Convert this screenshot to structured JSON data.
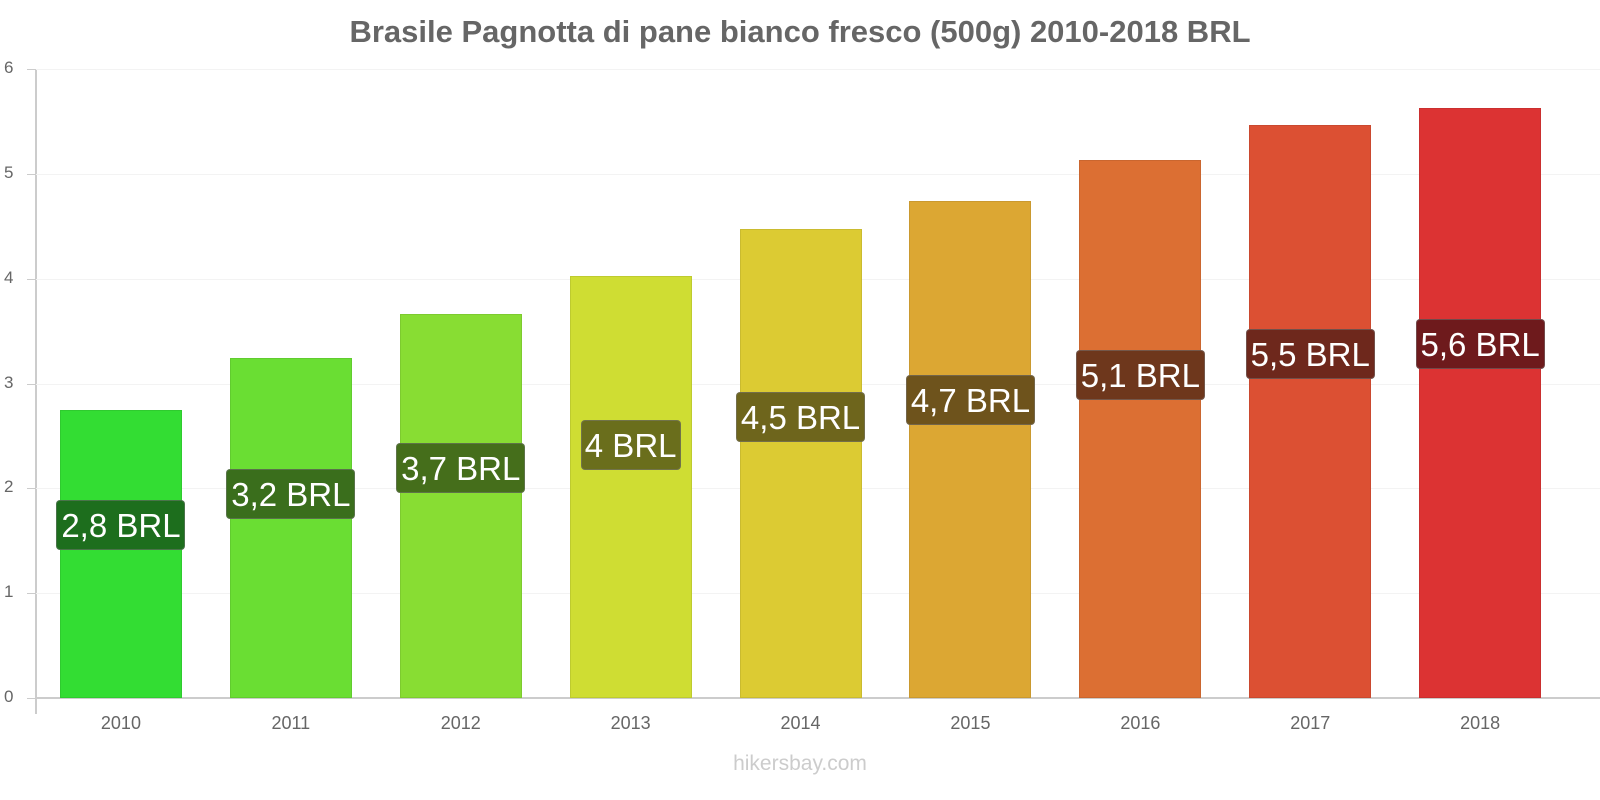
{
  "title": "Brasile Pagnotta di pane bianco fresco (500g) 2010-2018 BRL",
  "watermark": "hikersbay.com",
  "y_ticks": [
    "0",
    "1",
    "2",
    "3",
    "4",
    "5",
    "6"
  ],
  "x_ticks": [
    "2010",
    "2011",
    "2012",
    "2013",
    "2014",
    "2015",
    "2016",
    "2017",
    "2018"
  ],
  "bars": [
    {
      "year": "2010",
      "label": "2,8 BRL",
      "color": "#33dd33",
      "label_bg": "#1d6e1d"
    },
    {
      "year": "2011",
      "label": "3,2 BRL",
      "color": "#6ade33",
      "label_bg": "#3a6e1c"
    },
    {
      "year": "2012",
      "label": "3,7 BRL",
      "color": "#88dd33",
      "label_bg": "#456e1b"
    },
    {
      "year": "2013",
      "label": "4 BRL",
      "color": "#cfdd33",
      "label_bg": "#6a6e1c"
    },
    {
      "year": "2014",
      "label": "4,5 BRL",
      "color": "#dccb33",
      "label_bg": "#6e651c"
    },
    {
      "year": "2015",
      "label": "4,7 BRL",
      "color": "#dca733",
      "label_bg": "#6e531c"
    },
    {
      "year": "2016",
      "label": "5,1 BRL",
      "color": "#dc6f33",
      "label_bg": "#6e371c"
    },
    {
      "year": "2017",
      "label": "5,5 BRL",
      "color": "#dc5033",
      "label_bg": "#6e281c"
    },
    {
      "year": "2018",
      "label": "5,6 BRL",
      "color": "#dc3333",
      "label_bg": "#6e1a1c"
    }
  ],
  "chart_data": {
    "type": "bar",
    "title": "Brasile Pagnotta di pane bianco fresco (500g) 2010-2018 BRL",
    "xlabel": "",
    "ylabel": "",
    "categories": [
      "2010",
      "2011",
      "2012",
      "2013",
      "2014",
      "2015",
      "2016",
      "2017",
      "2018"
    ],
    "values": [
      2.75,
      3.24,
      3.66,
      4.03,
      4.47,
      4.74,
      5.13,
      5.47,
      5.63
    ],
    "data_labels": [
      "2,8 BRL",
      "3,2 BRL",
      "3,7 BRL",
      "4 BRL",
      "4,5 BRL",
      "4,7 BRL",
      "5,1 BRL",
      "5,5 BRL",
      "5,6 BRL"
    ],
    "ylim": [
      0,
      6
    ],
    "y_ticks": [
      0,
      1,
      2,
      3,
      4,
      5,
      6
    ],
    "grid": true,
    "legend": "none",
    "colors": [
      "#33dd33",
      "#6ade33",
      "#88dd33",
      "#cfdd33",
      "#dccb33",
      "#dca733",
      "#dc6f33",
      "#dc5033",
      "#dc3333"
    ]
  }
}
